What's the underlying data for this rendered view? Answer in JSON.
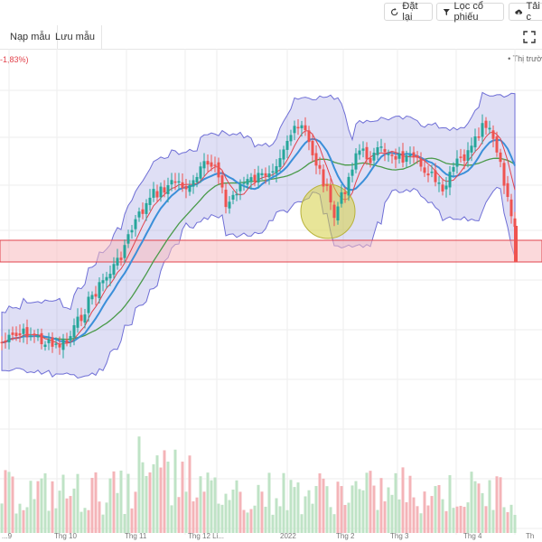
{
  "toolbar": {
    "reset_label": "Đặt lại",
    "filter_label": "Lọc cổ phiếu",
    "download_label": "Tải c"
  },
  "tabs": {
    "load_template": "Nạp mẫu",
    "save_template": "Lưu mẫu"
  },
  "chart_header": {
    "change_text": "-1,83%)",
    "market_text": "• Thị trườ"
  },
  "x_axis": {
    "labels": [
      "...9",
      "Thg 10",
      "Thg 11",
      "Thg 12 Li...",
      "2022",
      "Thg 2",
      "Thg 3",
      "Thg 4",
      "Th"
    ]
  },
  "colors": {
    "up": "#26a69a",
    "down": "#ef5350",
    "bollinger": "#6f6fd6",
    "ma_fast": "#3b8fd9",
    "ma_slow": "#4a9a4a",
    "ma_red": "#e2434c",
    "zone_fill": "#f7b9bd",
    "highlight": "#d5d044"
  },
  "icons": {
    "reset": "reset-icon",
    "filter": "filter-icon",
    "download": "cloud-download-icon",
    "expand": "expand-icon"
  }
}
